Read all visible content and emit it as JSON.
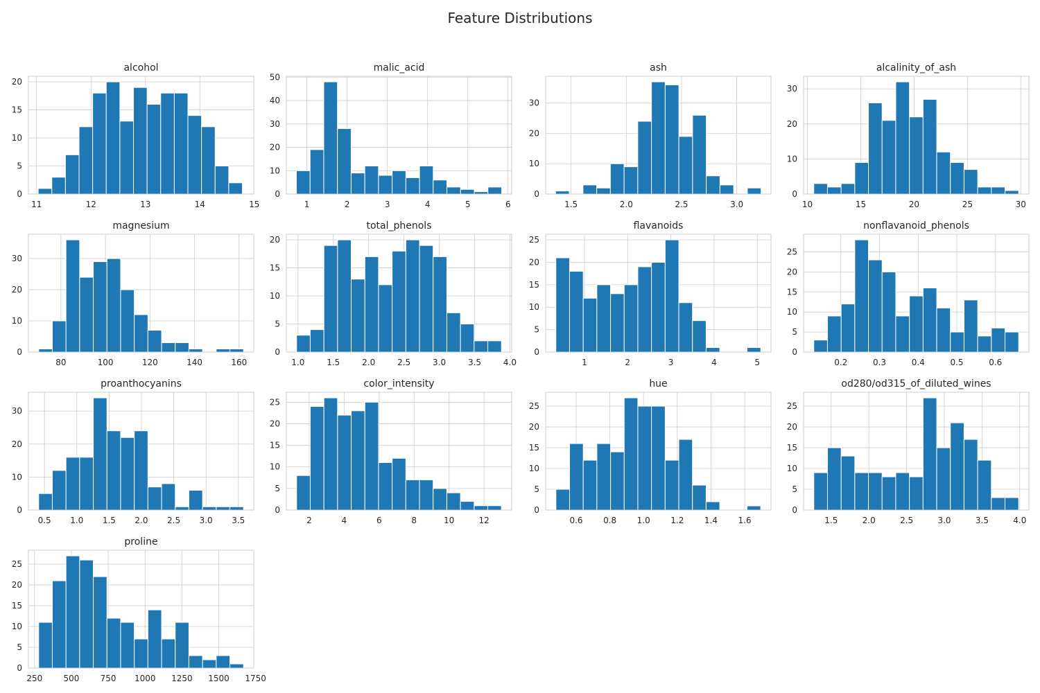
{
  "title": "Feature Distributions",
  "colors": {
    "bar": "#1f77b4",
    "grid": "#cccccc",
    "text": "#262626"
  },
  "chart_data": [
    {
      "type": "bar",
      "title": "alcohol",
      "bin_edges": [
        11.03,
        11.28,
        11.53,
        11.78,
        12.03,
        12.28,
        12.53,
        12.78,
        13.03,
        13.28,
        13.53,
        13.78,
        14.03,
        14.28,
        14.53,
        14.78
      ],
      "values": [
        1,
        3,
        7,
        12,
        18,
        20,
        13,
        19,
        16,
        18,
        18,
        14,
        12,
        5,
        2
      ],
      "xlim": [
        10.85,
        14.99
      ],
      "ylim": [
        0,
        21.0
      ],
      "xticks": [
        11,
        12,
        13,
        14,
        15
      ],
      "xtick_labels": [
        "11",
        "12",
        "13",
        "14",
        "15"
      ],
      "yticks": [
        0,
        5,
        10,
        15,
        20
      ],
      "grid": true
    },
    {
      "type": "bar",
      "title": "malic_acid",
      "bin_edges": [
        0.74,
        1.08,
        1.42,
        1.76,
        2.1,
        2.44,
        2.78,
        3.12,
        3.46,
        3.8,
        4.14,
        4.48,
        4.82,
        5.16,
        5.5,
        5.84
      ],
      "values": [
        10,
        19,
        48,
        28,
        9,
        12,
        8,
        10,
        7,
        12,
        6,
        3,
        2,
        1,
        3
      ],
      "xlim": [
        0.49,
        6.09
      ],
      "ylim": [
        0,
        50.4
      ],
      "xticks": [
        1,
        2,
        3,
        4,
        5,
        6
      ],
      "xtick_labels": [
        "1",
        "2",
        "3",
        "4",
        "5",
        "6"
      ],
      "yticks": [
        0,
        10,
        20,
        30,
        40,
        50
      ],
      "grid": true
    },
    {
      "type": "bar",
      "title": "ash",
      "bin_edges": [
        1.36,
        1.484,
        1.608,
        1.732,
        1.856,
        1.98,
        2.104,
        2.228,
        2.352,
        2.476,
        2.6,
        2.724,
        2.848,
        2.972,
        3.096,
        3.22
      ],
      "values": [
        1,
        0,
        3,
        2,
        10,
        9,
        24,
        37,
        36,
        19,
        26,
        6,
        3,
        0,
        2
      ],
      "xlim": [
        1.27,
        3.31
      ],
      "ylim": [
        0,
        38.85
      ],
      "xticks": [
        1.5,
        2.0,
        2.5,
        3.0
      ],
      "xtick_labels": [
        "1.5",
        "2.0",
        "2.5",
        "3.0"
      ],
      "yticks": [
        0,
        10,
        20,
        30
      ],
      "grid": true
    },
    {
      "type": "bar",
      "title": "alcalinity_of_ash",
      "bin_edges": [
        10.6,
        11.88,
        13.16,
        14.44,
        15.72,
        17.0,
        18.28,
        19.56,
        20.84,
        22.12,
        23.4,
        24.68,
        25.96,
        27.24,
        28.52,
        29.8
      ],
      "values": [
        3,
        2,
        3,
        9,
        26,
        21,
        32,
        22,
        27,
        12,
        9,
        7,
        2,
        2,
        1
      ],
      "xlim": [
        9.64,
        30.76
      ],
      "ylim": [
        0,
        33.6
      ],
      "xticks": [
        10,
        15,
        20,
        25,
        30
      ],
      "xtick_labels": [
        "10",
        "15",
        "20",
        "25",
        "30"
      ],
      "yticks": [
        0,
        10,
        20,
        30
      ],
      "grid": true
    },
    {
      "type": "bar",
      "title": "magnesium",
      "bin_edges": [
        70,
        76.13,
        82.27,
        88.4,
        94.53,
        100.67,
        106.8,
        112.93,
        119.07,
        125.2,
        131.33,
        137.47,
        143.6,
        149.73,
        155.87,
        162
      ],
      "values": [
        1,
        10,
        36,
        24,
        29,
        30,
        20,
        12,
        7,
        3,
        3,
        1,
        0,
        1,
        1
      ],
      "xlim": [
        65.4,
        166.6
      ],
      "ylim": [
        0,
        37.8
      ],
      "xticks": [
        80,
        100,
        120,
        140,
        160
      ],
      "xtick_labels": [
        "80",
        "100",
        "120",
        "140",
        "160"
      ],
      "yticks": [
        0,
        10,
        20,
        30
      ],
      "grid": true
    },
    {
      "type": "bar",
      "title": "total_phenols",
      "bin_edges": [
        0.98,
        1.173,
        1.367,
        1.56,
        1.753,
        1.947,
        2.14,
        2.333,
        2.527,
        2.72,
        2.913,
        3.107,
        3.3,
        3.493,
        3.687,
        3.88
      ],
      "values": [
        3,
        4,
        19,
        20,
        13,
        17,
        12,
        18,
        20,
        19,
        17,
        7,
        5,
        2,
        2
      ],
      "xlim": [
        0.835,
        4.025
      ],
      "ylim": [
        0,
        21.0
      ],
      "xticks": [
        1.0,
        1.5,
        2.0,
        2.5,
        3.0,
        3.5,
        4.0
      ],
      "xtick_labels": [
        "1.0",
        "1.5",
        "2.0",
        "2.5",
        "3.0",
        "3.5",
        "4.0"
      ],
      "yticks": [
        0,
        5,
        10,
        15,
        20
      ],
      "grid": true
    },
    {
      "type": "bar",
      "title": "flavanoids",
      "bin_edges": [
        0.34,
        0.656,
        0.972,
        1.288,
        1.604,
        1.92,
        2.236,
        2.552,
        2.868,
        3.184,
        3.5,
        3.816,
        4.132,
        4.448,
        4.764,
        5.08
      ],
      "values": [
        21,
        18,
        12,
        15,
        13,
        15,
        19,
        20,
        25,
        11,
        7,
        1,
        0,
        0,
        1
      ],
      "xlim": [
        0.103,
        5.317
      ],
      "ylim": [
        0,
        26.25
      ],
      "xticks": [
        1,
        2,
        3,
        4,
        5
      ],
      "xtick_labels": [
        "1",
        "2",
        "3",
        "4",
        "5"
      ],
      "yticks": [
        0,
        5,
        10,
        15,
        20,
        25
      ],
      "grid": true
    },
    {
      "type": "bar",
      "title": "nonflavanoid_phenols",
      "bin_edges": [
        0.13,
        0.1653,
        0.2007,
        0.236,
        0.2713,
        0.3067,
        0.342,
        0.3773,
        0.4127,
        0.448,
        0.4833,
        0.5187,
        0.554,
        0.5893,
        0.6247,
        0.66
      ],
      "values": [
        3,
        9,
        12,
        28,
        23,
        20,
        9,
        14,
        16,
        11,
        5,
        13,
        4,
        6,
        5
      ],
      "xlim": [
        0.1035,
        0.6865
      ],
      "ylim": [
        0,
        29.4
      ],
      "xticks": [
        0.2,
        0.3,
        0.4,
        0.5,
        0.6
      ],
      "xtick_labels": [
        "0.2",
        "0.3",
        "0.4",
        "0.5",
        "0.6"
      ],
      "yticks": [
        0,
        5,
        10,
        15,
        20,
        25
      ],
      "grid": true
    },
    {
      "type": "bar",
      "title": "proanthocyanins",
      "bin_edges": [
        0.41,
        0.6213,
        0.8327,
        1.044,
        1.2553,
        1.4667,
        1.678,
        1.8893,
        2.1007,
        2.312,
        2.5233,
        2.7347,
        2.946,
        3.1573,
        3.3687,
        3.58
      ],
      "values": [
        5,
        12,
        16,
        16,
        34,
        24,
        22,
        24,
        7,
        8,
        1,
        6,
        1,
        1,
        1
      ],
      "xlim": [
        0.2515,
        3.7385
      ],
      "ylim": [
        0,
        35.7
      ],
      "xticks": [
        0.5,
        1.0,
        1.5,
        2.0,
        2.5,
        3.0,
        3.5
      ],
      "xtick_labels": [
        "0.5",
        "1.0",
        "1.5",
        "2.0",
        "2.5",
        "3.0",
        "3.5"
      ],
      "yticks": [
        0,
        10,
        20,
        30
      ],
      "grid": true
    },
    {
      "type": "bar",
      "title": "color_intensity",
      "bin_edges": [
        1.28,
        2.061,
        2.842,
        3.623,
        4.404,
        5.185,
        5.966,
        6.747,
        7.528,
        8.309,
        9.09,
        9.871,
        10.652,
        11.433,
        12.214,
        12.995
      ],
      "values": [
        8,
        24,
        26,
        22,
        23,
        25,
        11,
        12,
        7,
        7,
        5,
        4,
        2,
        1,
        1
      ],
      "xlim": [
        0.694,
        13.581
      ],
      "ylim": [
        0,
        27.3
      ],
      "xticks": [
        2,
        4,
        6,
        8,
        10,
        12
      ],
      "xtick_labels": [
        "2",
        "4",
        "6",
        "8",
        "10",
        "12"
      ],
      "yticks": [
        0,
        5,
        10,
        15,
        20,
        25
      ],
      "grid": true
    },
    {
      "type": "bar",
      "title": "hue",
      "bin_edges": [
        0.48,
        0.561,
        0.642,
        0.723,
        0.804,
        0.885,
        0.966,
        1.047,
        1.128,
        1.209,
        1.29,
        1.371,
        1.452,
        1.533,
        1.614,
        1.695
      ],
      "values": [
        5,
        16,
        12,
        16,
        14,
        27,
        25,
        25,
        12,
        17,
        6,
        2,
        0,
        0,
        1
      ],
      "xlim": [
        0.419,
        1.756
      ],
      "ylim": [
        0,
        28.35
      ],
      "xticks": [
        0.6,
        0.8,
        1.0,
        1.2,
        1.4,
        1.6
      ],
      "xtick_labels": [
        "0.6",
        "0.8",
        "1.0",
        "1.2",
        "1.4",
        "1.6"
      ],
      "yticks": [
        0,
        5,
        10,
        15,
        20,
        25
      ],
      "grid": true
    },
    {
      "type": "bar",
      "title": "od280/od315_of_diluted_wines",
      "bin_edges": [
        1.27,
        1.451,
        1.632,
        1.813,
        1.994,
        2.175,
        2.356,
        2.537,
        2.718,
        2.899,
        3.08,
        3.261,
        3.442,
        3.623,
        3.804,
        3.985
      ],
      "values": [
        9,
        15,
        13,
        9,
        9,
        8,
        9,
        8,
        27,
        15,
        21,
        17,
        12,
        3,
        3
      ],
      "xlim": [
        1.134,
        4.121
      ],
      "ylim": [
        0,
        28.35
      ],
      "xticks": [
        1.5,
        2.0,
        2.5,
        3.0,
        3.5,
        4.0
      ],
      "xtick_labels": [
        "1.5",
        "2.0",
        "2.5",
        "3.0",
        "3.5",
        "4.0"
      ],
      "yticks": [
        0,
        5,
        10,
        15,
        20,
        25
      ],
      "grid": true
    },
    {
      "type": "bar",
      "title": "proline",
      "bin_edges": [
        278,
        370.67,
        463.33,
        556,
        648.67,
        741.33,
        834,
        926.67,
        1019.33,
        1112,
        1204.67,
        1297.33,
        1390,
        1482.67,
        1575.33,
        1668
      ],
      "values": [
        11,
        21,
        27,
        26,
        22,
        12,
        11,
        7,
        14,
        7,
        11,
        3,
        2,
        3,
        1
      ],
      "xlim": [
        208.5,
        1737.5
      ],
      "ylim": [
        0,
        28.35
      ],
      "xticks": [
        250,
        500,
        750,
        1000,
        1250,
        1500,
        1750
      ],
      "xtick_labels": [
        "250",
        "500",
        "750",
        "1000",
        "1250",
        "1500",
        "1750"
      ],
      "yticks": [
        0,
        5,
        10,
        15,
        20,
        25
      ],
      "grid": true
    }
  ]
}
